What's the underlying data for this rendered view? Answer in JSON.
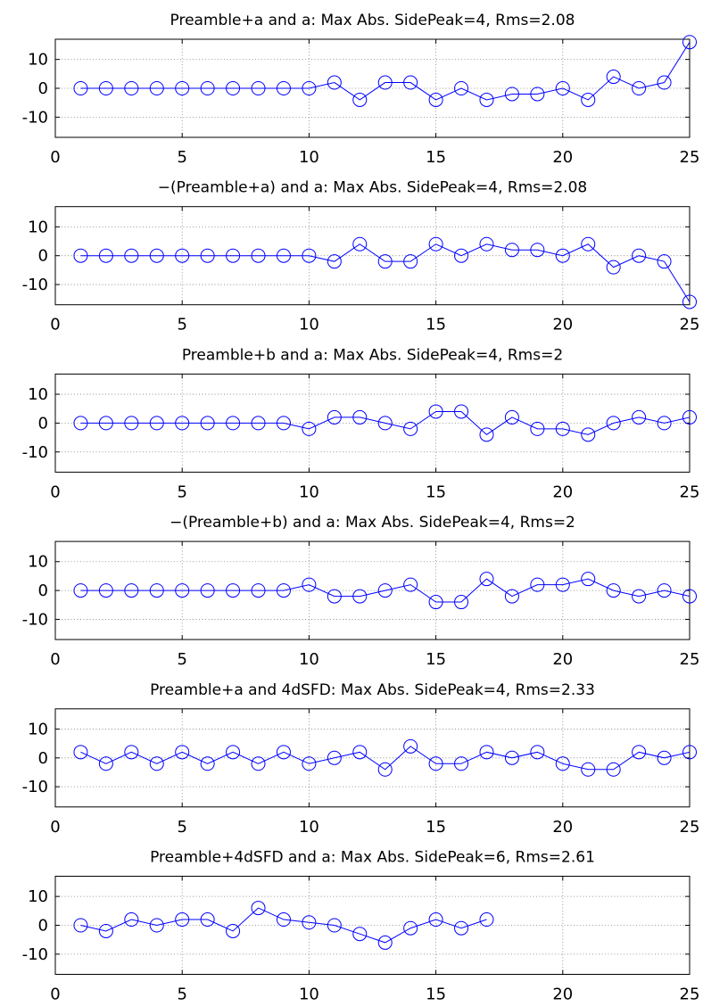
{
  "figure": {
    "background": "#ffffff"
  },
  "chart_data": [
    {
      "type": "line",
      "title": "Preamble+a and a: Max Abs. SidePeak=4, Rms=2.08",
      "xlim": [
        0,
        25
      ],
      "ylim": [
        -17,
        17
      ],
      "xticks": [
        0,
        5,
        10,
        15,
        20,
        25
      ],
      "yticks": [
        -10,
        0,
        10
      ],
      "grid": true,
      "marker": "circle",
      "color": "#0000ff",
      "x": [
        1,
        2,
        3,
        4,
        5,
        6,
        7,
        8,
        9,
        10,
        11,
        12,
        13,
        14,
        15,
        16,
        17,
        18,
        19,
        20,
        21,
        22,
        23,
        24,
        25
      ],
      "y": [
        0,
        0,
        0,
        0,
        0,
        0,
        0,
        0,
        0,
        0,
        2,
        -4,
        2,
        2,
        -4,
        0,
        -4,
        -2,
        -2,
        0,
        -4,
        4,
        0,
        2,
        16
      ]
    },
    {
      "type": "line",
      "title": "−(Preamble+a) and a: Max Abs. SidePeak=4, Rms=2.08",
      "xlim": [
        0,
        25
      ],
      "ylim": [
        -17,
        17
      ],
      "xticks": [
        0,
        5,
        10,
        15,
        20,
        25
      ],
      "yticks": [
        -10,
        0,
        10
      ],
      "grid": true,
      "marker": "circle",
      "color": "#0000ff",
      "x": [
        1,
        2,
        3,
        4,
        5,
        6,
        7,
        8,
        9,
        10,
        11,
        12,
        13,
        14,
        15,
        16,
        17,
        18,
        19,
        20,
        21,
        22,
        23,
        24,
        25
      ],
      "y": [
        0,
        0,
        0,
        0,
        0,
        0,
        0,
        0,
        0,
        0,
        -2,
        4,
        -2,
        -2,
        4,
        0,
        4,
        2,
        2,
        0,
        4,
        -4,
        0,
        -2,
        -16
      ]
    },
    {
      "type": "line",
      "title": "Preamble+b and a: Max Abs. SidePeak=4, Rms=2",
      "xlim": [
        0,
        25
      ],
      "ylim": [
        -17,
        17
      ],
      "xticks": [
        0,
        5,
        10,
        15,
        20,
        25
      ],
      "yticks": [
        -10,
        0,
        10
      ],
      "grid": true,
      "marker": "circle",
      "color": "#0000ff",
      "x": [
        1,
        2,
        3,
        4,
        5,
        6,
        7,
        8,
        9,
        10,
        11,
        12,
        13,
        14,
        15,
        16,
        17,
        18,
        19,
        20,
        21,
        22,
        23,
        24,
        25
      ],
      "y": [
        0,
        0,
        0,
        0,
        0,
        0,
        0,
        0,
        0,
        -2,
        2,
        2,
        0,
        -2,
        4,
        4,
        -4,
        2,
        -2,
        -2,
        -4,
        0,
        2,
        0,
        2
      ]
    },
    {
      "type": "line",
      "title": "−(Preamble+b) and a: Max Abs. SidePeak=4, Rms=2",
      "xlim": [
        0,
        25
      ],
      "ylim": [
        -17,
        17
      ],
      "xticks": [
        0,
        5,
        10,
        15,
        20,
        25
      ],
      "yticks": [
        -10,
        0,
        10
      ],
      "grid": true,
      "marker": "circle",
      "color": "#0000ff",
      "x": [
        1,
        2,
        3,
        4,
        5,
        6,
        7,
        8,
        9,
        10,
        11,
        12,
        13,
        14,
        15,
        16,
        17,
        18,
        19,
        20,
        21,
        22,
        23,
        24,
        25
      ],
      "y": [
        0,
        0,
        0,
        0,
        0,
        0,
        0,
        0,
        0,
        2,
        -2,
        -2,
        0,
        2,
        -4,
        -4,
        4,
        -2,
        2,
        2,
        4,
        0,
        -2,
        0,
        -2
      ]
    },
    {
      "type": "line",
      "title": "Preamble+a and 4dSFD: Max Abs. SidePeak=4, Rms=2.33",
      "xlim": [
        0,
        25
      ],
      "ylim": [
        -17,
        17
      ],
      "xticks": [
        0,
        5,
        10,
        15,
        20,
        25
      ],
      "yticks": [
        -10,
        0,
        10
      ],
      "grid": true,
      "marker": "circle",
      "color": "#0000ff",
      "x": [
        1,
        2,
        3,
        4,
        5,
        6,
        7,
        8,
        9,
        10,
        11,
        12,
        13,
        14,
        15,
        16,
        17,
        18,
        19,
        20,
        21,
        22,
        23,
        24,
        25
      ],
      "y": [
        2,
        -2,
        2,
        -2,
        2,
        -2,
        2,
        -2,
        2,
        -2,
        0,
        2,
        -4,
        4,
        -2,
        -2,
        2,
        0,
        2,
        -2,
        -4,
        -4,
        2,
        0,
        2
      ]
    },
    {
      "type": "line",
      "title": "Preamble+4dSFD and a: Max Abs. SidePeak=6, Rms=2.61",
      "xlim": [
        0,
        25
      ],
      "ylim": [
        -17,
        17
      ],
      "xticks": [
        0,
        5,
        10,
        15,
        20,
        25
      ],
      "yticks": [
        -10,
        0,
        10
      ],
      "grid": true,
      "marker": "circle",
      "color": "#0000ff",
      "x": [
        1,
        2,
        3,
        4,
        5,
        6,
        7,
        8,
        9,
        10,
        11,
        12,
        13,
        14,
        15,
        16,
        17
      ],
      "y": [
        0,
        -2,
        2,
        0,
        2,
        2,
        -2,
        6,
        2,
        1,
        0,
        -3,
        -6,
        -1,
        2,
        -1,
        2
      ]
    }
  ]
}
